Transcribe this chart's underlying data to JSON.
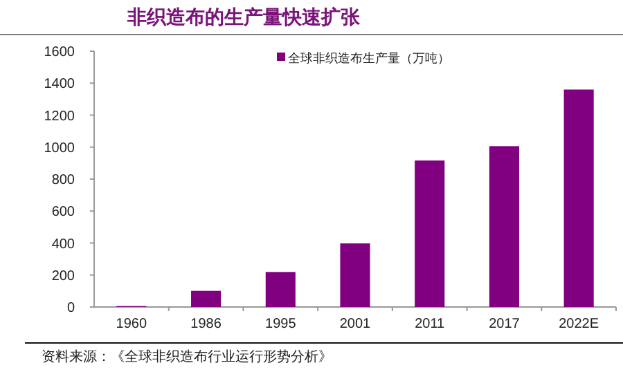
{
  "chart_data": {
    "type": "bar",
    "title": "非织造布的生产量快速扩张",
    "categories": [
      "1960",
      "1986",
      "1995",
      "2001",
      "2011",
      "2017",
      "2022E"
    ],
    "series": [
      {
        "name": "全球非织造布生产量（万吨）",
        "color": "#800080",
        "values": [
          6,
          101,
          219,
          398,
          916,
          1006,
          1360
        ]
      }
    ],
    "ylim": [
      0,
      1600
    ],
    "yticks": [
      0,
      200,
      400,
      600,
      800,
      1000,
      1200,
      1400,
      1600
    ],
    "legend": "top",
    "annotations": [
      "资料来源：《全球非织造布行业运行形势分析》"
    ]
  }
}
